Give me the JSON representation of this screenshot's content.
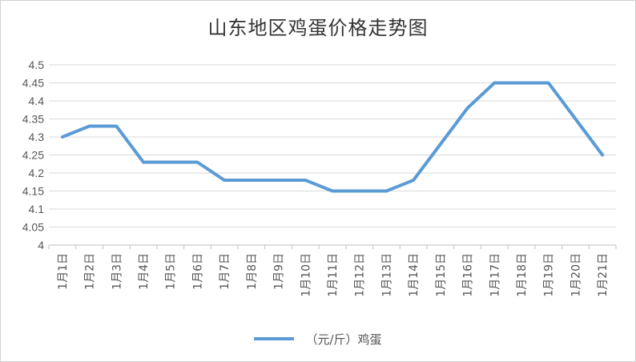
{
  "chart_data": {
    "type": "line",
    "title": "山东地区鸡蛋价格走势图",
    "categories": [
      "1月1日",
      "1月2日",
      "1月3日",
      "1月4日",
      "1月5日",
      "1月6日",
      "1月7日",
      "1月8日",
      "1月9日",
      "1月10日",
      "1月11日",
      "1月12日",
      "1月13日",
      "1月14日",
      "1月15日",
      "1月16日",
      "1月17日",
      "1月18日",
      "1月19日",
      "1月20日",
      "1月21日"
    ],
    "yticks": [
      "4",
      "4.05",
      "4.1",
      "4.15",
      "4.2",
      "4.25",
      "4.3",
      "4.35",
      "4.4",
      "4.45",
      "4.5"
    ],
    "ylim": [
      4,
      4.5
    ],
    "series": [
      {
        "name": "（元/斤）鸡蛋",
        "values": [
          4.3,
          4.33,
          4.33,
          4.23,
          4.23,
          4.23,
          4.18,
          4.18,
          4.18,
          4.18,
          4.15,
          4.15,
          4.15,
          4.18,
          4.28,
          4.38,
          4.45,
          4.45,
          4.45,
          4.35,
          4.25
        ]
      }
    ],
    "grid": true,
    "legend_position": "bottom",
    "colors": {
      "line": "#5b9bd5",
      "grid": "#d9d9d9",
      "axis": "#bfbfbf"
    }
  }
}
